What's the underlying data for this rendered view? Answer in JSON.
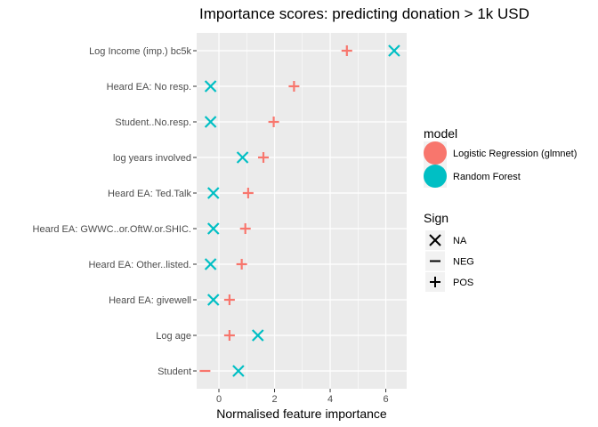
{
  "chart_data": {
    "type": "scatter",
    "title": "Importance scores: predicting donation > 1k USD",
    "xlabel": "Normalised feature importance",
    "ylabel": "",
    "xlim": [
      -0.8,
      6.75
    ],
    "xticks": [
      0,
      2,
      4,
      6
    ],
    "xtick_labels": [
      "0",
      "2",
      "4",
      "6"
    ],
    "categories": [
      "Log Income (imp.) bc5k",
      "Heard EA: No resp.",
      "Student..No.resp.",
      "log years involved",
      "Heard EA: Ted.Talk",
      "Heard EA: GWWC..or.OftW.or.SHIC.",
      "Heard EA: Other..listed.",
      "Heard EA: givewell",
      "Log age",
      "Student"
    ],
    "series": [
      {
        "name": "Logistic Regression (glmnet)",
        "color": "#F8766D",
        "values": [
          4.6,
          2.7,
          1.97,
          1.6,
          1.05,
          0.95,
          0.82,
          0.38,
          0.38,
          -0.5
        ],
        "signs": [
          "POS",
          "POS",
          "POS",
          "POS",
          "POS",
          "POS",
          "POS",
          "POS",
          "POS",
          "NEG"
        ]
      },
      {
        "name": "Random Forest",
        "color": "#00BFC4",
        "values": [
          6.3,
          -0.3,
          -0.3,
          0.85,
          -0.2,
          -0.2,
          -0.3,
          -0.2,
          1.4,
          0.7
        ],
        "signs": [
          "NA",
          "NA",
          "NA",
          "NA",
          "NA",
          "NA",
          "NA",
          "NA",
          "NA",
          "NA"
        ]
      }
    ],
    "legend": {
      "placement": "right",
      "model_title": "model",
      "sign_title": "Sign",
      "sign_items": [
        {
          "symbol": "NA",
          "label": "NA"
        },
        {
          "symbol": "NEG",
          "label": "NEG"
        },
        {
          "symbol": "POS",
          "label": "POS"
        }
      ]
    },
    "grid": true,
    "panel_color": "#EBEBEB"
  }
}
